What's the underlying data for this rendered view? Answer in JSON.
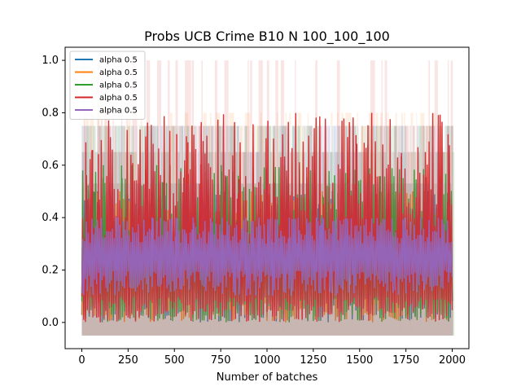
{
  "chart_data": {
    "type": "line",
    "title": "Probs UCB Crime B10 N 100_100_100",
    "xlabel": "Number of batches",
    "ylabel": "",
    "xlim": [
      -90,
      2090
    ],
    "ylim": [
      -0.1,
      1.05
    ],
    "xticks": [
      0,
      250,
      500,
      750,
      1000,
      1250,
      1500,
      1750,
      2000
    ],
    "xtick_labels": [
      "0",
      "250",
      "500",
      "750",
      "1000",
      "1250",
      "1500",
      "1750",
      "2000"
    ],
    "yticks": [
      0.0,
      0.2,
      0.4,
      0.6,
      0.8,
      1.0
    ],
    "ytick_labels": [
      "0.0",
      "0.2",
      "0.4",
      "0.6",
      "0.8",
      "1.0"
    ],
    "grid": false,
    "legend_position": "top-left",
    "x_range": [
      0,
      2000
    ],
    "series": [
      {
        "name": "alpha 0.5",
        "color": "#1f77b4",
        "band": [
          -0.05,
          0.75
        ],
        "core": [
          0.0,
          0.5
        ]
      },
      {
        "name": "alpha 0.5",
        "color": "#ff7f0e",
        "band": [
          -0.05,
          0.8
        ],
        "core": [
          0.0,
          0.5
        ]
      },
      {
        "name": "alpha 0.5",
        "color": "#2ca02c",
        "band": [
          -0.05,
          0.75
        ],
        "core": [
          0.0,
          0.6
        ]
      },
      {
        "name": "alpha 0.5",
        "color": "#d62728",
        "band": [
          -0.05,
          1.0
        ],
        "core": [
          0.0,
          0.8
        ]
      },
      {
        "name": "alpha 0.5",
        "color": "#9467bd",
        "band": [
          -0.05,
          0.75
        ],
        "core": [
          0.1,
          0.4
        ]
      }
    ]
  }
}
